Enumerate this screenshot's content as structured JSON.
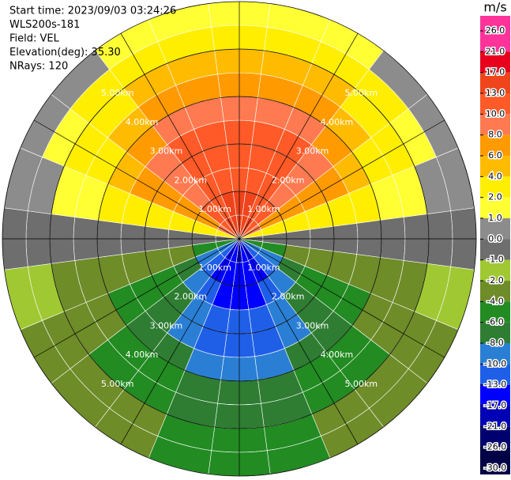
{
  "chart_data": {
    "type": "ppi",
    "info": [
      "Start time: 2023/09/03 03:24:26",
      "WLS200s-181",
      "Field: VEL",
      "Elevation(deg): 35.30",
      "NRays: 120"
    ],
    "range_rings": [
      {
        "value": 1,
        "label": "1.00km"
      },
      {
        "value": 2,
        "label": "2.00km"
      },
      {
        "value": 3,
        "label": "3.00km"
      },
      {
        "value": 4,
        "label": "4.00km"
      },
      {
        "value": 5,
        "label": "5.00km"
      }
    ],
    "max_range": 5,
    "spokes": [
      0,
      30,
      60,
      90,
      120,
      150,
      180,
      210,
      240,
      270,
      300,
      330
    ],
    "azimuths": [
      0,
      15,
      30,
      45,
      60,
      75,
      90,
      105,
      120,
      135,
      150,
      165,
      180,
      195,
      210,
      225,
      240,
      255,
      270,
      285,
      300,
      315,
      330,
      345
    ],
    "ranges": [
      0.5,
      1,
      1.5,
      2,
      2.5,
      3,
      3.5,
      4,
      4.5,
      5
    ],
    "values": [
      [
        17,
        15,
        13,
        13,
        13,
        10,
        8,
        6,
        4,
        2
      ],
      [
        16,
        15,
        13,
        13,
        13,
        10,
        8,
        6,
        4,
        2
      ],
      [
        15,
        13,
        11,
        11,
        11,
        9,
        7,
        5,
        3,
        2
      ],
      [
        12,
        11,
        9,
        9,
        9,
        7,
        6,
        4,
        3,
        1
      ],
      [
        9,
        8,
        7,
        7,
        7,
        5,
        4,
        3,
        2,
        1
      ],
      [
        4,
        4,
        3,
        3,
        3,
        3,
        2,
        2,
        1,
        1
      ],
      [
        0,
        0,
        0,
        0,
        0,
        0,
        0,
        0,
        0,
        0
      ],
      [
        -4,
        -4,
        -3,
        -3,
        -3,
        -2,
        -2,
        -2,
        -1,
        -1
      ],
      [
        -9,
        -8,
        -7,
        -5,
        -5,
        -4,
        -3,
        -3,
        -2,
        -2
      ],
      [
        -12,
        -11,
        -9,
        -7,
        -7,
        -6,
        -4,
        -4,
        -3,
        -3
      ],
      [
        -15,
        -13,
        -11,
        -9,
        -9,
        -7,
        -5,
        -5,
        -3,
        -3
      ],
      [
        -16,
        -15,
        -13,
        -10,
        -10,
        -8,
        -6,
        -6,
        -4,
        -4
      ],
      [
        -17,
        -15,
        -13,
        -10,
        -10,
        -8,
        -6,
        -6,
        -4,
        -4
      ],
      [
        -16,
        -15,
        -13,
        -10,
        -10,
        -8,
        -6,
        -6,
        -4,
        -4
      ],
      [
        -15,
        -13,
        -11,
        -9,
        -9,
        -7,
        -5,
        -5,
        -3,
        -3
      ],
      [
        -12,
        -11,
        -9,
        -7,
        -7,
        -6,
        -4,
        -4,
        -3,
        -3
      ],
      [
        -9,
        -8,
        -7,
        -5,
        -5,
        -4,
        -3,
        -3,
        -2,
        -2
      ],
      [
        -4,
        -4,
        -3,
        -3,
        -3,
        -2,
        -2,
        -2,
        -1,
        -1
      ],
      [
        0,
        0,
        0,
        0,
        0,
        0,
        0,
        0,
        0,
        0
      ],
      [
        4,
        4,
        3,
        3,
        3,
        3,
        2,
        2,
        1,
        1
      ],
      [
        9,
        8,
        7,
        7,
        7,
        5,
        4,
        3,
        2,
        1
      ],
      [
        12,
        11,
        9,
        9,
        9,
        7,
        6,
        4,
        3,
        1
      ],
      [
        15,
        13,
        11,
        11,
        11,
        9,
        7,
        5,
        3,
        2
      ],
      [
        16,
        15,
        13,
        13,
        13,
        10,
        8,
        6,
        4,
        2
      ]
    ],
    "colorbar": {
      "label": "m/s",
      "ticks": [
        {
          "value": 26,
          "label": "26.0"
        },
        {
          "value": 21,
          "label": "21.0"
        },
        {
          "value": 17,
          "label": "17.0"
        },
        {
          "value": 13,
          "label": "13.0"
        },
        {
          "value": 10,
          "label": "10.0"
        },
        {
          "value": 8,
          "label": "8.0"
        },
        {
          "value": 6,
          "label": "6.0"
        },
        {
          "value": 4,
          "label": "4.0"
        },
        {
          "value": 2,
          "label": "2.0"
        },
        {
          "value": 1,
          "label": "1.0"
        },
        {
          "value": 0,
          "label": "0.0"
        },
        {
          "value": -1,
          "label": "-1.0"
        },
        {
          "value": -2,
          "label": "-2.0"
        },
        {
          "value": -4,
          "label": "-4.0"
        },
        {
          "value": -6,
          "label": "-6.0"
        },
        {
          "value": -8,
          "label": "-8.0"
        },
        {
          "value": -10,
          "label": "-10.0"
        },
        {
          "value": -13,
          "label": "-13.0"
        },
        {
          "value": -17,
          "label": "-17.0"
        },
        {
          "value": -21,
          "label": "-21.0"
        },
        {
          "value": -26,
          "label": "-26.0"
        },
        {
          "value": -30,
          "label": "-30.0"
        }
      ],
      "colors": [
        "#ff3399",
        "#e8001c",
        "#f0441c",
        "#ff5a28",
        "#ff7a50",
        "#ff9a00",
        "#ffbb00",
        "#ffee00",
        "#ffff33",
        "#8c8c8c",
        "#6e6e6e",
        "#a0c832",
        "#6e8c28",
        "#228b22",
        "#2e7d32",
        "#2a7fd4",
        "#1f5fe8",
        "#0000ff",
        "#0000b4",
        "#00006e",
        "#000046"
      ]
    }
  }
}
